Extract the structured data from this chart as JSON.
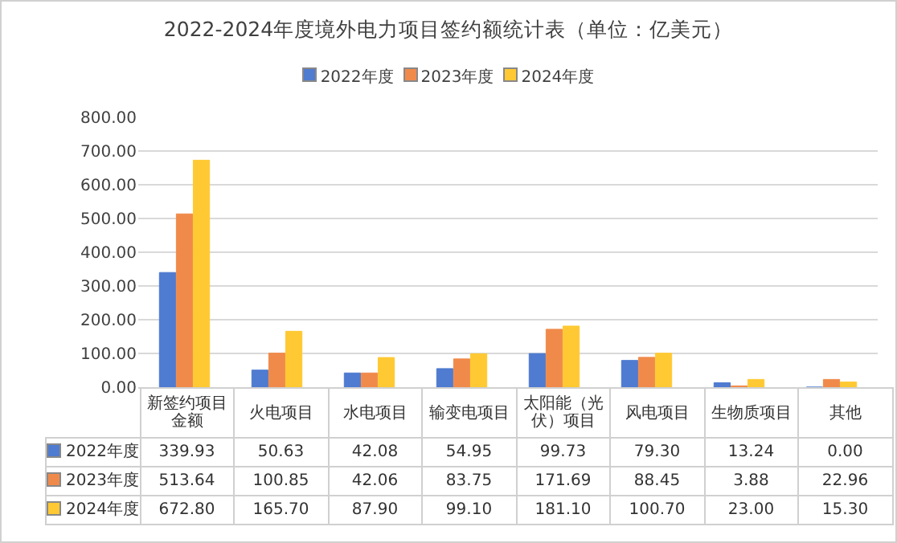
{
  "chart_data": {
    "type": "bar",
    "title": "2022-2024年度境外电力项目签约额统计表（单位：亿美元）",
    "categories": [
      "新签约项目金额",
      "火电项目",
      "水电项目",
      "输变电项目",
      "太阳能（光伏）项目",
      "风电项目",
      "生物质项目",
      "其他"
    ],
    "series": [
      {
        "name": "2022年度",
        "color": "#4f7bd0",
        "values": [
          339.93,
          50.63,
          42.08,
          54.95,
          99.73,
          79.3,
          13.24,
          0
        ],
        "value_labels": [
          "339.93",
          "50.63",
          "42.08",
          "54.95",
          "99.73",
          "79.30",
          "13.24",
          "0.00"
        ]
      },
      {
        "name": "2023年度",
        "color": "#f08a4b",
        "values": [
          513.64,
          100.85,
          42.06,
          83.75,
          171.69,
          88.45,
          3.88,
          22.96
        ],
        "value_labels": [
          "513.64",
          "100.85",
          "42.06",
          "83.75",
          "171.69",
          "88.45",
          "3.88",
          "22.96"
        ]
      },
      {
        "name": "2024年度",
        "color": "#ffc933",
        "values": [
          672.8,
          165.7,
          87.9,
          99.1,
          181.1,
          100.7,
          23,
          15.3
        ],
        "value_labels": [
          "672.80",
          "165.70",
          "87.90",
          "99.10",
          "181.10",
          "100.70",
          "23.00",
          "15.30"
        ]
      }
    ],
    "ylim": [
      0,
      800
    ],
    "yticks": [
      {
        "value": 0,
        "label": "0.00"
      },
      {
        "value": 100,
        "label": "100.00"
      },
      {
        "value": 200,
        "label": "200.00"
      },
      {
        "value": 300,
        "label": "300.00"
      },
      {
        "value": 400,
        "label": "400.00"
      },
      {
        "value": 500,
        "label": "500.00"
      },
      {
        "value": 600,
        "label": "600.00"
      },
      {
        "value": 700,
        "label": "700.00"
      },
      {
        "value": 800,
        "label": "800.00"
      }
    ],
    "grid": "y",
    "legend": "top"
  }
}
